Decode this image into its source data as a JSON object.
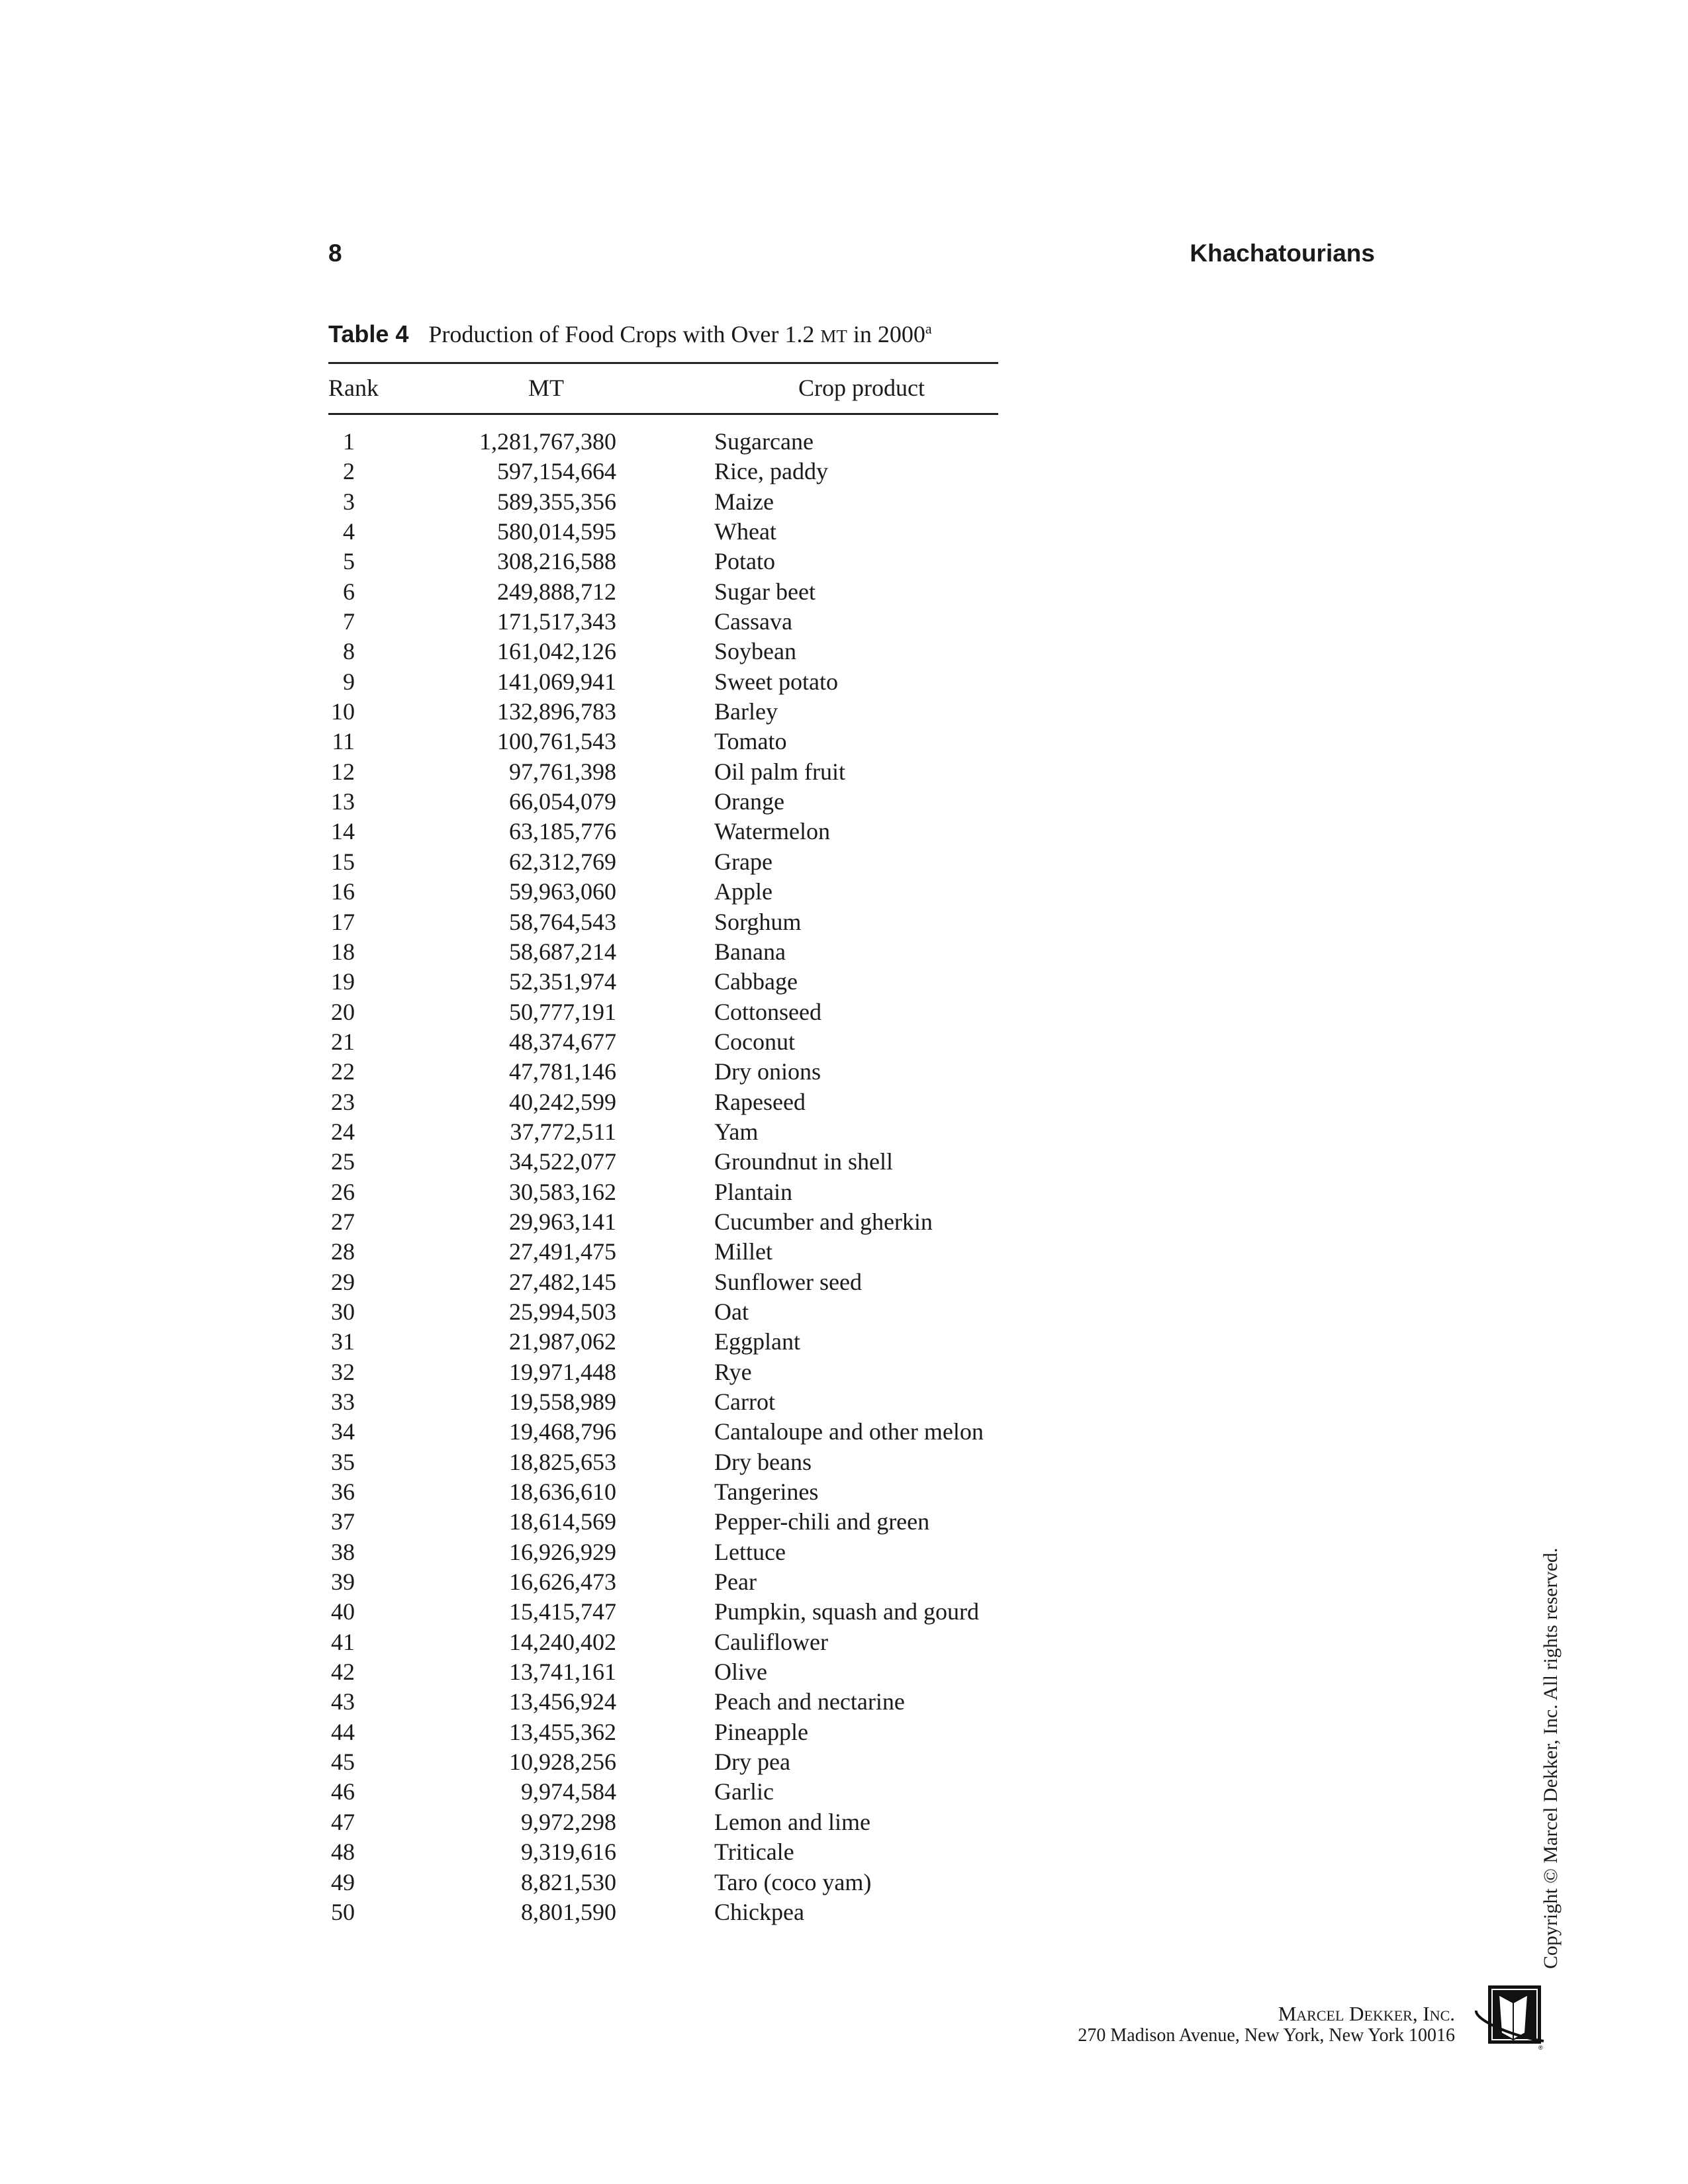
{
  "header": {
    "page_number": "8",
    "running_title": "Khachatourians"
  },
  "table": {
    "label": "Table 4",
    "caption_before_unit": "Production of Food Crops with Over 1.2",
    "caption_unit": "MT",
    "caption_after_unit": "in 2000",
    "caption_footnote_mark": "a",
    "columns": [
      "Rank",
      "MT",
      "Crop product"
    ],
    "rows": [
      [
        "1",
        "1,281,767,380",
        "Sugarcane"
      ],
      [
        "2",
        "597,154,664",
        "Rice, paddy"
      ],
      [
        "3",
        "589,355,356",
        "Maize"
      ],
      [
        "4",
        "580,014,595",
        "Wheat"
      ],
      [
        "5",
        "308,216,588",
        "Potato"
      ],
      [
        "6",
        "249,888,712",
        "Sugar beet"
      ],
      [
        "7",
        "171,517,343",
        "Cassava"
      ],
      [
        "8",
        "161,042,126",
        "Soybean"
      ],
      [
        "9",
        "141,069,941",
        "Sweet potato"
      ],
      [
        "10",
        "132,896,783",
        "Barley"
      ],
      [
        "11",
        "100,761,543",
        "Tomato"
      ],
      [
        "12",
        "97,761,398",
        "Oil palm fruit"
      ],
      [
        "13",
        "66,054,079",
        "Orange"
      ],
      [
        "14",
        "63,185,776",
        "Watermelon"
      ],
      [
        "15",
        "62,312,769",
        "Grape"
      ],
      [
        "16",
        "59,963,060",
        "Apple"
      ],
      [
        "17",
        "58,764,543",
        "Sorghum"
      ],
      [
        "18",
        "58,687,214",
        "Banana"
      ],
      [
        "19",
        "52,351,974",
        "Cabbage"
      ],
      [
        "20",
        "50,777,191",
        "Cottonseed"
      ],
      [
        "21",
        "48,374,677",
        "Coconut"
      ],
      [
        "22",
        "47,781,146",
        "Dry onions"
      ],
      [
        "23",
        "40,242,599",
        "Rapeseed"
      ],
      [
        "24",
        "37,772,511",
        "Yam"
      ],
      [
        "25",
        "34,522,077",
        "Groundnut in shell"
      ],
      [
        "26",
        "30,583,162",
        "Plantain"
      ],
      [
        "27",
        "29,963,141",
        "Cucumber and gherkin"
      ],
      [
        "28",
        "27,491,475",
        "Millet"
      ],
      [
        "29",
        "27,482,145",
        "Sunflower seed"
      ],
      [
        "30",
        "25,994,503",
        "Oat"
      ],
      [
        "31",
        "21,987,062",
        "Eggplant"
      ],
      [
        "32",
        "19,971,448",
        "Rye"
      ],
      [
        "33",
        "19,558,989",
        "Carrot"
      ],
      [
        "34",
        "19,468,796",
        "Cantaloupe and other melon"
      ],
      [
        "35",
        "18,825,653",
        "Dry beans"
      ],
      [
        "36",
        "18,636,610",
        "Tangerines"
      ],
      [
        "37",
        "18,614,569",
        "Pepper-chili and green"
      ],
      [
        "38",
        "16,926,929",
        "Lettuce"
      ],
      [
        "39",
        "16,626,473",
        "Pear"
      ],
      [
        "40",
        "15,415,747",
        "Pumpkin, squash and gourd"
      ],
      [
        "41",
        "14,240,402",
        "Cauliflower"
      ],
      [
        "42",
        "13,741,161",
        "Olive"
      ],
      [
        "43",
        "13,456,924",
        "Peach and nectarine"
      ],
      [
        "44",
        "13,455,362",
        "Pineapple"
      ],
      [
        "45",
        "10,928,256",
        "Dry pea"
      ],
      [
        "46",
        "9,974,584",
        "Garlic"
      ],
      [
        "47",
        "9,972,298",
        "Lemon and lime"
      ],
      [
        "48",
        "9,319,616",
        "Triticale"
      ],
      [
        "49",
        "8,821,530",
        "Taro (coco yam)"
      ],
      [
        "50",
        "8,801,590",
        "Chickpea"
      ]
    ]
  },
  "footer": {
    "copyright": "Copyright © Marcel Dekker, Inc. All rights reserved.",
    "publisher_name": "Marcel Dekker, Inc.",
    "publisher_address": "270 Madison Avenue, New York, New York 10016",
    "logo_icon": "book-logo-icon"
  }
}
